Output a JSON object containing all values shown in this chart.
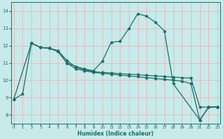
{
  "xlabel": "Humidex (Indice chaleur)",
  "bg_color": "#c8eaea",
  "line_color": "#1a6e68",
  "grid_color": "#f0aaaa",
  "xlim": [
    -0.3,
    23.3
  ],
  "ylim": [
    7.5,
    14.5
  ],
  "xticks": [
    0,
    1,
    2,
    3,
    4,
    5,
    6,
    7,
    8,
    9,
    10,
    11,
    12,
    13,
    14,
    15,
    16,
    17,
    18,
    19,
    20,
    21,
    22,
    23
  ],
  "yticks": [
    8,
    9,
    10,
    11,
    12,
    13,
    14
  ],
  "line1_x": [
    0,
    1,
    2,
    3,
    4,
    5,
    6,
    7,
    8,
    9,
    10,
    11,
    12,
    13,
    14,
    15,
    16,
    17,
    18,
    21,
    22,
    23
  ],
  "line1_y": [
    8.9,
    9.2,
    12.15,
    11.9,
    11.85,
    11.7,
    11.0,
    10.8,
    10.65,
    10.55,
    11.1,
    12.2,
    12.25,
    13.0,
    13.85,
    13.7,
    13.35,
    12.85,
    9.8,
    7.7,
    8.45,
    8.45
  ],
  "line2_x": [
    0,
    2,
    3,
    4,
    5,
    6,
    7,
    8,
    9,
    10,
    11,
    12,
    13,
    14,
    15,
    16,
    17,
    18,
    19,
    20,
    21,
    22,
    23
  ],
  "line2_y": [
    8.9,
    12.15,
    11.9,
    11.85,
    11.7,
    11.15,
    10.75,
    10.6,
    10.5,
    10.45,
    10.42,
    10.38,
    10.35,
    10.32,
    10.28,
    10.25,
    10.22,
    10.18,
    10.15,
    10.12,
    8.45,
    8.45,
    8.45
  ],
  "line3_x": [
    2,
    3,
    4,
    5,
    6,
    7,
    8,
    9,
    10,
    11,
    12,
    13,
    14,
    15,
    16,
    17,
    18,
    19,
    20,
    21,
    22,
    23
  ],
  "line3_y": [
    12.15,
    11.9,
    11.85,
    11.65,
    11.0,
    10.65,
    10.55,
    10.45,
    10.4,
    10.35,
    10.3,
    10.25,
    10.2,
    10.15,
    10.1,
    10.05,
    10.0,
    9.95,
    9.8,
    7.7,
    8.45,
    8.45
  ]
}
